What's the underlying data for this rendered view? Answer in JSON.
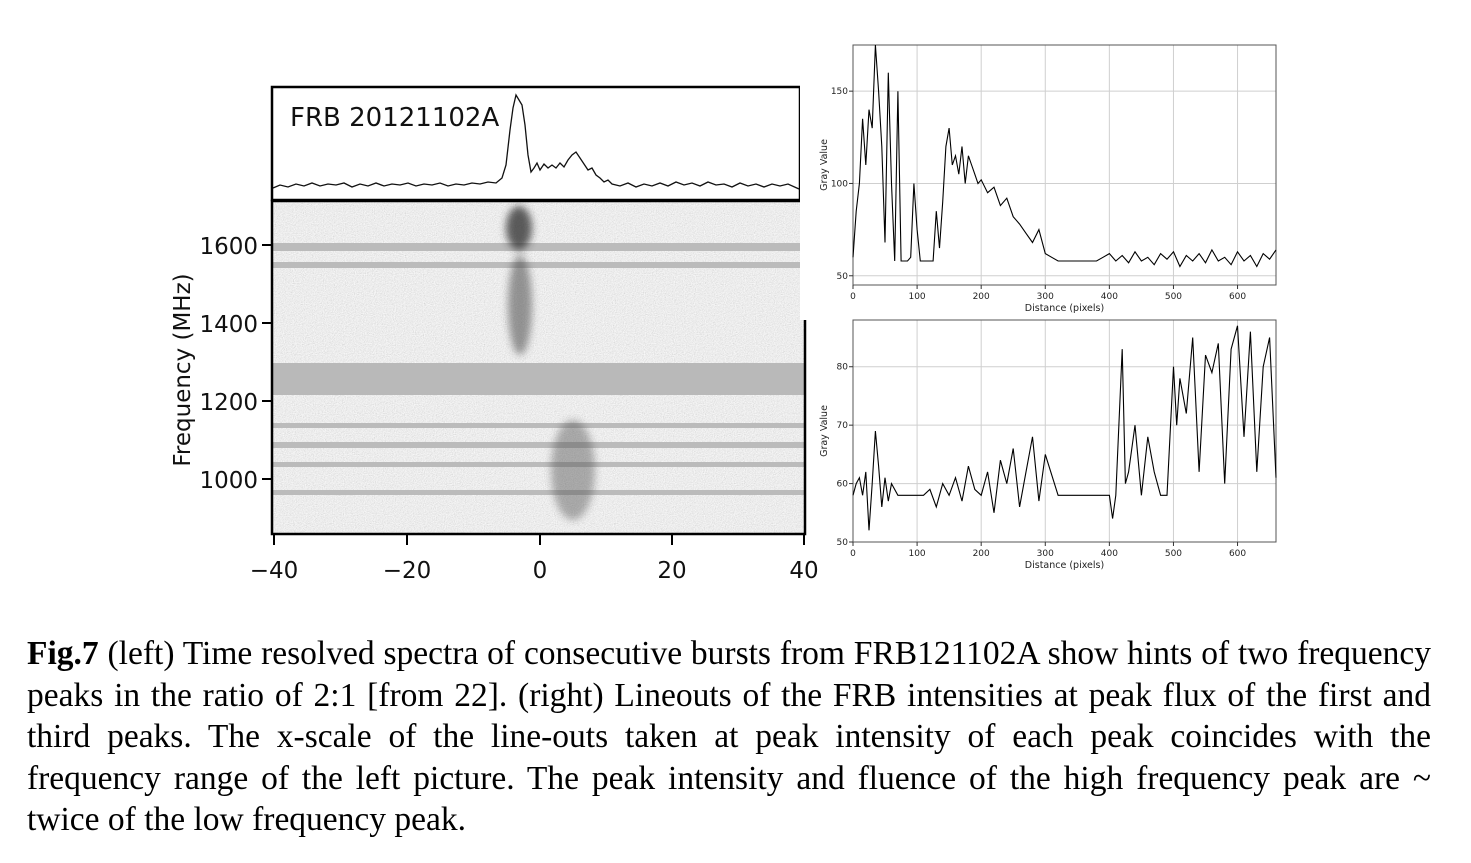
{
  "left_panel": {
    "burst_label": "FRB 20121102A",
    "ylabel": "Frequency (MHz)",
    "y_ticks": [
      "1000",
      "1200",
      "1400",
      "1600"
    ],
    "y_tick_values": [
      1000,
      1200,
      1400,
      1600
    ],
    "x_ticks": [
      "−40",
      "−20",
      "0",
      "20",
      "40"
    ],
    "x_tick_values": [
      -40,
      -20,
      0,
      20,
      40
    ]
  },
  "chart_data": [
    {
      "type": "line",
      "ylabel": "Gray Value",
      "xlabel": "Distance (pixels)",
      "xlim": [
        0,
        660
      ],
      "ylim": [
        45,
        175
      ],
      "x_ticks": [
        "0",
        "100",
        "200",
        "300",
        "400",
        "500",
        "600"
      ],
      "x_tick_values": [
        0,
        100,
        200,
        300,
        400,
        500,
        600
      ],
      "y_ticks": [
        "50",
        "100",
        "150"
      ],
      "y_tick_values": [
        50,
        100,
        150
      ],
      "grid": true,
      "x": [
        0,
        5,
        10,
        15,
        20,
        25,
        30,
        35,
        40,
        45,
        50,
        55,
        60,
        65,
        70,
        75,
        80,
        85,
        90,
        95,
        100,
        105,
        110,
        115,
        120,
        125,
        130,
        135,
        140,
        145,
        150,
        155,
        160,
        165,
        170,
        175,
        180,
        185,
        190,
        195,
        200,
        210,
        220,
        230,
        240,
        250,
        260,
        270,
        280,
        290,
        300,
        310,
        320,
        330,
        340,
        350,
        360,
        370,
        380,
        390,
        400,
        410,
        420,
        430,
        440,
        450,
        460,
        470,
        480,
        490,
        500,
        510,
        520,
        530,
        540,
        550,
        560,
        570,
        580,
        590,
        600,
        610,
        620,
        630,
        640,
        650,
        660
      ],
      "y": [
        60,
        85,
        100,
        135,
        110,
        140,
        130,
        175,
        150,
        120,
        68,
        160,
        100,
        58,
        150,
        58,
        58,
        58,
        60,
        100,
        75,
        58,
        58,
        58,
        58,
        58,
        85,
        65,
        90,
        120,
        130,
        110,
        115,
        105,
        120,
        100,
        115,
        110,
        105,
        100,
        102,
        95,
        98,
        88,
        92,
        82,
        78,
        73,
        68,
        75,
        62,
        60,
        58,
        58,
        58,
        58,
        58,
        58,
        58,
        60,
        62,
        58,
        61,
        57,
        63,
        58,
        60,
        56,
        62,
        59,
        63,
        55,
        61,
        58,
        62,
        57,
        64,
        58,
        60,
        56,
        63,
        58,
        61,
        55,
        62,
        59,
        64
      ],
      "values": [
        60,
        85,
        100,
        135,
        110,
        140,
        130,
        175,
        150,
        120,
        68,
        160,
        100,
        58,
        150,
        58,
        58,
        58,
        60,
        100,
        75,
        58,
        58,
        58,
        58,
        58,
        85,
        65,
        90,
        120,
        130,
        110,
        115,
        105,
        120,
        100,
        115,
        110,
        105,
        100,
        102,
        95,
        98,
        88,
        92,
        82,
        78,
        73,
        68,
        75,
        62,
        60,
        58,
        58,
        58,
        58,
        58,
        58,
        58,
        60,
        62,
        58,
        61,
        57,
        63,
        58,
        60,
        56,
        62,
        59,
        63,
        55,
        61,
        58,
        62,
        57,
        64,
        58,
        60,
        56,
        63,
        58,
        61,
        55,
        62,
        59,
        64
      ]
    },
    {
      "type": "line",
      "ylabel": "Gray Value",
      "xlabel": "Distance (pixels)",
      "xlim": [
        0,
        660
      ],
      "ylim": [
        50,
        88
      ],
      "x_ticks": [
        "0",
        "100",
        "200",
        "300",
        "400",
        "500",
        "600"
      ],
      "x_tick_values": [
        0,
        100,
        200,
        300,
        400,
        500,
        600
      ],
      "y_ticks": [
        "50",
        "60",
        "70",
        "80"
      ],
      "y_tick_values": [
        50,
        60,
        70,
        80
      ],
      "grid": true,
      "x": [
        0,
        5,
        10,
        15,
        20,
        25,
        30,
        35,
        40,
        45,
        50,
        55,
        60,
        70,
        80,
        90,
        100,
        110,
        120,
        130,
        140,
        150,
        160,
        170,
        180,
        190,
        200,
        210,
        220,
        230,
        240,
        250,
        260,
        270,
        280,
        290,
        300,
        320,
        340,
        360,
        380,
        400,
        405,
        410,
        420,
        425,
        430,
        440,
        450,
        460,
        470,
        480,
        490,
        500,
        505,
        510,
        520,
        530,
        540,
        550,
        560,
        570,
        580,
        590,
        600,
        610,
        620,
        630,
        640,
        650,
        660
      ],
      "y": [
        58,
        60,
        61,
        58,
        62,
        52,
        60,
        69,
        63,
        56,
        61,
        57,
        60,
        58,
        58,
        58,
        58,
        58,
        59,
        56,
        60,
        58,
        61,
        57,
        63,
        59,
        58,
        62,
        55,
        64,
        60,
        66,
        56,
        62,
        68,
        57,
        65,
        58,
        58,
        58,
        58,
        58,
        54,
        58,
        83,
        60,
        62,
        70,
        58,
        68,
        62,
        58,
        58,
        80,
        70,
        78,
        72,
        85,
        62,
        82,
        79,
        84,
        60,
        83,
        87,
        68,
        86,
        62,
        80,
        85,
        61
      ],
      "values": [
        58,
        60,
        61,
        58,
        62,
        52,
        60,
        69,
        63,
        56,
        61,
        57,
        60,
        58,
        58,
        58,
        58,
        58,
        59,
        56,
        60,
        58,
        61,
        57,
        63,
        59,
        58,
        62,
        55,
        64,
        60,
        66,
        56,
        62,
        68,
        57,
        65,
        58,
        58,
        58,
        58,
        58,
        54,
        58,
        83,
        60,
        62,
        70,
        58,
        68,
        62,
        58,
        58,
        80,
        70,
        78,
        72,
        85,
        62,
        82,
        79,
        84,
        60,
        83,
        87,
        68,
        86,
        62,
        80,
        85,
        61
      ]
    }
  ],
  "caption": {
    "fig_label": "Fig.7",
    "text": " (left) Time resolved spectra of consecutive bursts from FRB121102A show hints of two frequency peaks in the ratio of 2:1 [from 22].  (right)  Lineouts of the FRB intensities at peak flux of the first and third peaks. The x-scale of the line-outs taken at peak intensity of each peak coincides with the frequency range of the left picture.  The peak intensity and fluence of the high frequency peak are ~ twice of the low frequency peak."
  }
}
